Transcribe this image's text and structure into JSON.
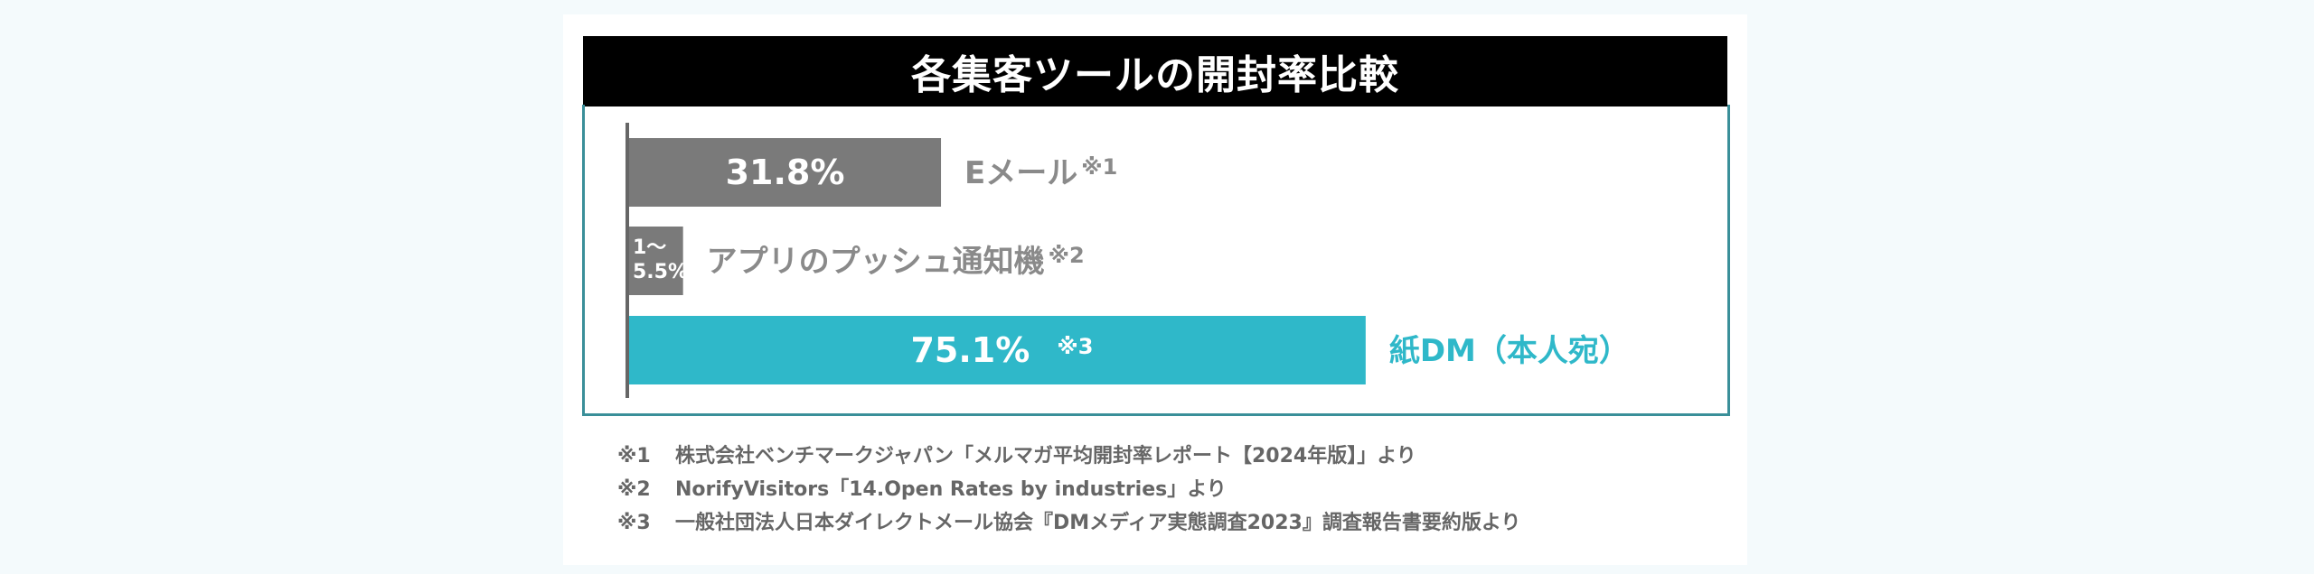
{
  "chart_data": {
    "type": "bar",
    "orientation": "horizontal",
    "title": "各集客ツールの開封率比較",
    "categories": [
      "Eメール",
      "アプリのプッシュ通知機",
      "紙DM（本人宛）"
    ],
    "values": [
      31.8,
      5.5,
      75.1
    ],
    "value_labels": [
      "31.8%",
      "1〜\n5.5%",
      "75.1%"
    ],
    "value_range_note": "アプリのプッシュ通知は1〜5.5%",
    "footnote_marks": [
      "※1",
      "※2",
      "※3"
    ],
    "xlim": [
      0,
      100
    ],
    "grid": false,
    "legend": "none",
    "colors": [
      "#7a7a7a",
      "#7a7a7a",
      "#2fb8c9"
    ],
    "label_colors": [
      "#8a8a8a",
      "#8a8a8a",
      "#2fb8c9"
    ]
  },
  "notes": [
    {
      "mark": "※1",
      "text": "株式会社ベンチマークジャパン「メルマガ平均開封率レポート【2024年版】」より"
    },
    {
      "mark": "※2",
      "text": "NorifyVisitors「14.Open Rates by industries」より"
    },
    {
      "mark": "※3",
      "text": "一般社団法人日本ダイレクトメール協会『DMメディア実態調査2023』調査報告書要約版より"
    }
  ]
}
